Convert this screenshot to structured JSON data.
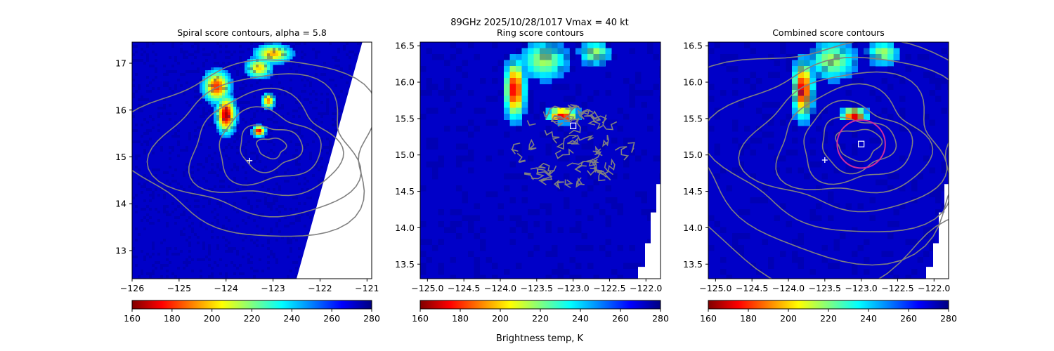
{
  "suptitle": "89GHz  2025/10/28/1017    Vmax = 40 kt",
  "colorbar_label": "Brightness temp, K",
  "colormap_stops": [
    "#800000",
    "#ff0000",
    "#ff8000",
    "#ffff00",
    "#80ff80",
    "#00ffff",
    "#0080ff",
    "#0000ff",
    "#000080"
  ],
  "contour_color": "#808080",
  "marker_color": "#ffffff",
  "ring_color": "#cc2da0",
  "chart_data": [
    {
      "type": "heatmap",
      "title": "Spiral score contours, alpha =  5.8",
      "xlim": [
        -126.0,
        -120.9
      ],
      "ylim": [
        12.4,
        17.45
      ],
      "xticks": [
        -126,
        -125,
        -124,
        -123,
        -122,
        -121
      ],
      "yticks": [
        13,
        14,
        15,
        16,
        17
      ],
      "colorbar": {
        "vmin": 160,
        "vmax": 280,
        "ticks": [
          160,
          180,
          200,
          220,
          240,
          260,
          280
        ]
      },
      "swath_edge": [
        [
          -122.5,
          12.4
        ],
        [
          -121.1,
          17.45
        ]
      ],
      "cold_cores": [
        {
          "x": -123.0,
          "y": 17.2,
          "sx": 0.35,
          "sy": 0.18,
          "min": 195
        },
        {
          "x": -123.3,
          "y": 16.9,
          "sx": 0.25,
          "sy": 0.2,
          "min": 200
        },
        {
          "x": -124.2,
          "y": 16.5,
          "sx": 0.25,
          "sy": 0.3,
          "min": 180
        },
        {
          "x": -124.0,
          "y": 15.9,
          "sx": 0.18,
          "sy": 0.35,
          "min": 165
        },
        {
          "x": -123.3,
          "y": 15.55,
          "sx": 0.12,
          "sy": 0.1,
          "min": 170
        },
        {
          "x": -123.1,
          "y": 16.2,
          "sx": 0.12,
          "sy": 0.15,
          "min": 190
        }
      ],
      "contour_center": [
        -123.0,
        15.2
      ],
      "contour_radii": [
        0.25,
        0.55,
        0.9,
        1.3,
        1.75,
        2.2
      ],
      "marker": {
        "symbol": "+",
        "x": -123.5,
        "y": 14.92
      }
    },
    {
      "type": "heatmap",
      "title": "Ring score contours",
      "xlim": [
        -125.1,
        -121.8
      ],
      "ylim": [
        13.3,
        16.55
      ],
      "xticks": [
        -125.0,
        -124.5,
        -124.0,
        -123.5,
        -123.0,
        -122.5,
        -122.0
      ],
      "xticklabels": [
        "−125.0",
        "−124.5",
        "−124.0",
        "−123.5",
        "−123.0",
        "−122.5",
        "−122.0"
      ],
      "yticks": [
        13.5,
        14.0,
        14.5,
        15.0,
        15.5,
        16.0,
        16.5
      ],
      "colorbar": {
        "vmin": 160,
        "vmax": 280,
        "ticks": [
          160,
          180,
          200,
          220,
          240,
          260,
          280
        ]
      },
      "cold_cores": [
        {
          "x": -123.8,
          "y": 15.9,
          "sx": 0.12,
          "sy": 0.35,
          "min": 170
        },
        {
          "x": -123.15,
          "y": 15.55,
          "sx": 0.18,
          "sy": 0.08,
          "min": 165
        },
        {
          "x": -123.4,
          "y": 16.3,
          "sx": 0.3,
          "sy": 0.25,
          "min": 215
        },
        {
          "x": -122.7,
          "y": 16.4,
          "sx": 0.2,
          "sy": 0.15,
          "min": 215
        }
      ],
      "noise_region": {
        "cx": -123.0,
        "cy": 15.1,
        "rx": 0.85,
        "ry": 0.6
      },
      "marker": {
        "symbol": "square",
        "x": -123.0,
        "y": 15.4
      }
    },
    {
      "type": "heatmap",
      "title": "Combined score contours",
      "xlim": [
        -125.1,
        -121.8
      ],
      "ylim": [
        13.3,
        16.55
      ],
      "xticks": [
        -125.0,
        -124.5,
        -124.0,
        -123.5,
        -123.0,
        -122.5,
        -122.0
      ],
      "xticklabels": [
        "−125.0",
        "−124.5",
        "−124.0",
        "−123.5",
        "−123.0",
        "−122.5",
        "−122.0"
      ],
      "yticks": [
        13.5,
        14.0,
        14.5,
        15.0,
        15.5,
        16.0,
        16.5
      ],
      "colorbar": {
        "vmin": 160,
        "vmax": 280,
        "ticks": [
          160,
          180,
          200,
          220,
          240,
          260,
          280
        ]
      },
      "cold_cores": [
        {
          "x": -123.8,
          "y": 15.9,
          "sx": 0.12,
          "sy": 0.35,
          "min": 170
        },
        {
          "x": -123.1,
          "y": 15.55,
          "sx": 0.15,
          "sy": 0.07,
          "min": 160
        },
        {
          "x": -123.4,
          "y": 16.3,
          "sx": 0.3,
          "sy": 0.25,
          "min": 215
        },
        {
          "x": -122.7,
          "y": 16.4,
          "sx": 0.2,
          "sy": 0.15,
          "min": 215
        }
      ],
      "contour_center": [
        -123.0,
        15.15
      ],
      "contour_radii": [
        0.25,
        0.42,
        0.62,
        0.85,
        1.1,
        1.4,
        1.75,
        2.1
      ],
      "ring": {
        "x": -123.0,
        "y": 15.15,
        "r": 0.33
      },
      "marker_plus": {
        "x": -123.5,
        "y": 14.93
      },
      "marker_square": {
        "x": -123.0,
        "y": 15.15
      }
    }
  ]
}
